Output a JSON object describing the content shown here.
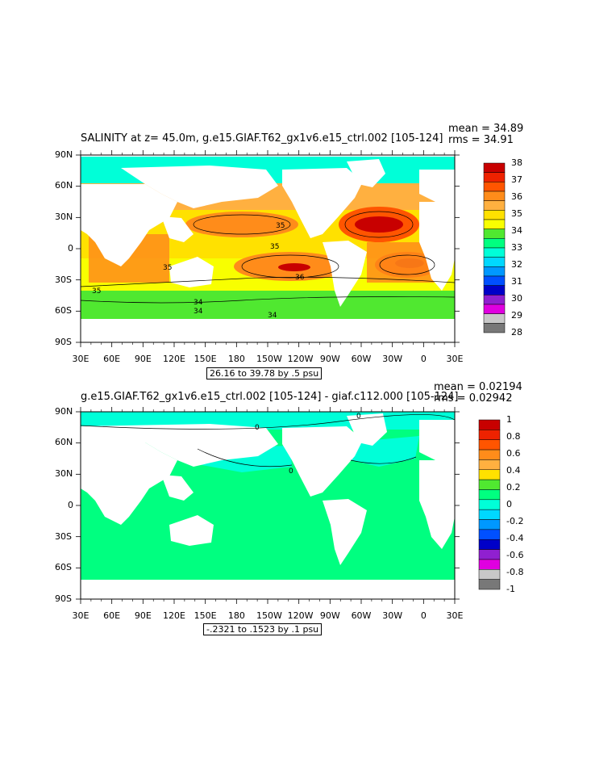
{
  "panels": [
    {
      "title": "SALINITY at z=  45.0m, g.e15.GIAF.T62_gx1v6.e15_ctrl.002 [105-124]",
      "mean_label": "mean = 34.89",
      "rms_label": "rms = 34.91",
      "range_label": "26.16 to 39.78 by .5 psu",
      "colorbar_labels": [
        "38",
        "37",
        "36",
        "35",
        "34",
        "33",
        "32",
        "31",
        "30",
        "29",
        "28"
      ],
      "colorbar_colors": [
        "#c80000",
        "#ee2200",
        "#ff5500",
        "#ff8c1a",
        "#ffb040",
        "#ffe100",
        "#f8ff00",
        "#50e830",
        "#00ff80",
        "#00ffd8",
        "#00d8ff",
        "#0098ff",
        "#0050ff",
        "#0000c8",
        "#9020d0",
        "#e000e0",
        "#c8c8c8",
        "#787878"
      ],
      "contour_labels": [
        "35",
        "35",
        "35",
        "35",
        "36",
        "34",
        "34",
        "34"
      ]
    },
    {
      "title": "g.e15.GIAF.T62_gx1v6.e15_ctrl.002 [105-124] - giaf.c112.000 [105-124]",
      "mean_label": "mean = 0.02194",
      "rms_label": "rms = 0.02942",
      "range_label": "-.2321 to .1523 by .1 psu",
      "colorbar_labels": [
        "1",
        "0.8",
        "0.6",
        "0.4",
        "0.2",
        "0",
        "-0.2",
        "-0.4",
        "-0.6",
        "-0.8",
        "-1"
      ],
      "colorbar_colors": [
        "#c80000",
        "#ee2200",
        "#ff5500",
        "#ff8c1a",
        "#ffb040",
        "#ffe100",
        "#50e830",
        "#00ff80",
        "#00ffd8",
        "#00d8ff",
        "#0098ff",
        "#0050ff",
        "#0000c8",
        "#9020d0",
        "#e000e0",
        "#c8c8c8",
        "#787878"
      ],
      "contour_labels": [
        "0",
        "0",
        "0"
      ]
    }
  ],
  "axes": {
    "lat_labels": [
      "90N",
      "60N",
      "30N",
      "0",
      "30S",
      "60S",
      "90S"
    ],
    "lon_labels": [
      "30E",
      "60E",
      "90E",
      "120E",
      "150E",
      "180",
      "150W",
      "120W",
      "90W",
      "60W",
      "30W",
      "0",
      "30E"
    ]
  }
}
